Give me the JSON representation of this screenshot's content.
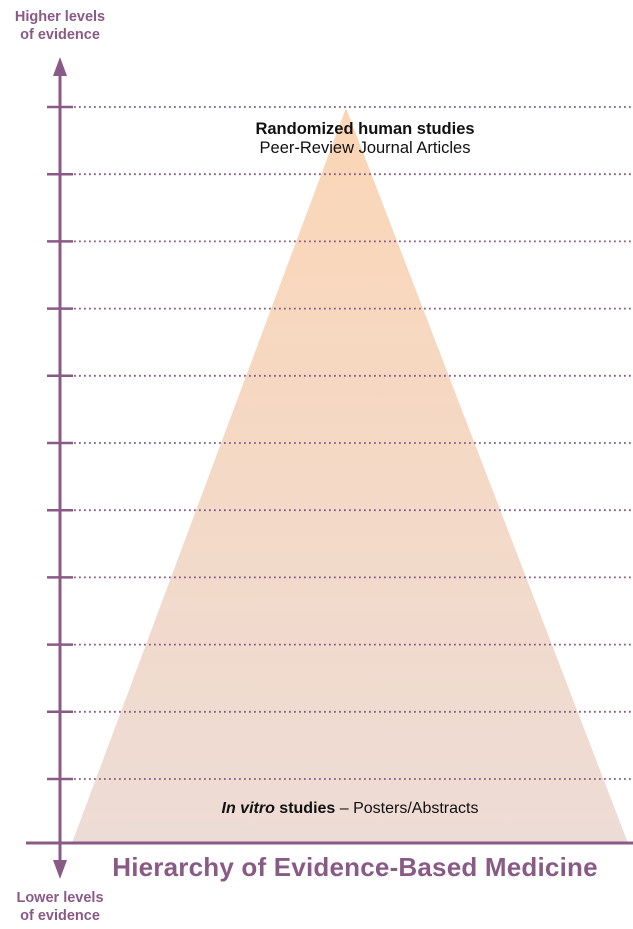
{
  "axis": {
    "top_label_line1": "Higher levels",
    "top_label_line2": "of evidence",
    "bottom_label_line1": "Lower levels",
    "bottom_label_line2": "of evidence"
  },
  "apex": {
    "title": "Randomized human studies",
    "subtitle": "Peer-Review Journal Articles"
  },
  "base": {
    "italic_part": "In vitro",
    "bold_part": " studies",
    "rest": " – Posters/Abstracts"
  },
  "title": "Hierarchy of Evidence-Based Medicine",
  "colors": {
    "axis": "#8a5a87",
    "pyramid_top": "#fbd6b6",
    "pyramid_bottom": "#eddcd6",
    "dotted_lines": "#8a5a87"
  },
  "level_count": 11
}
